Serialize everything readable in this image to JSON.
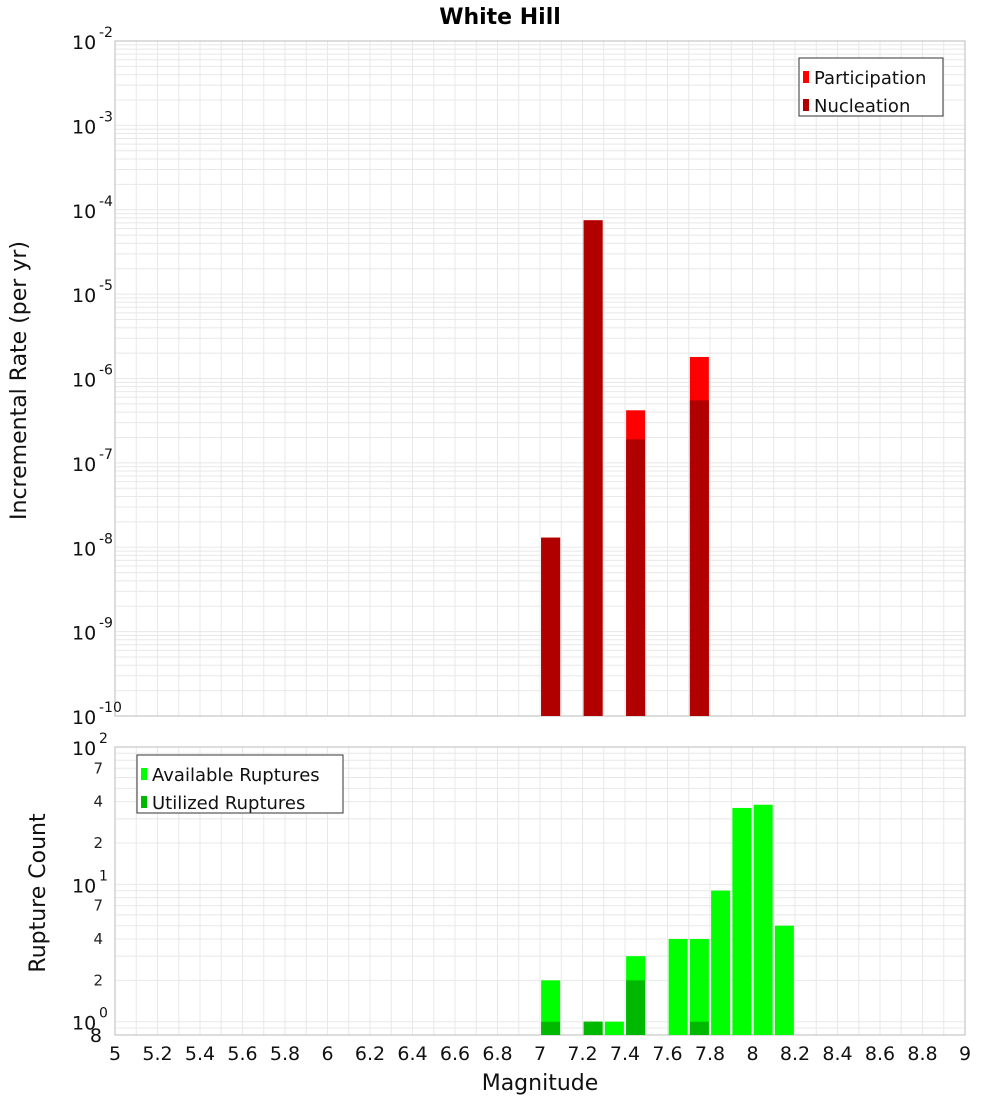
{
  "title": "White Hill",
  "xlabel": "Magnitude",
  "x_ticks": [
    "5",
    "5.2",
    "5.4",
    "5.6",
    "5.8",
    "6",
    "6.2",
    "6.4",
    "6.6",
    "6.8",
    "7",
    "7.2",
    "7.4",
    "7.6",
    "7.8",
    "8",
    "8.2",
    "8.4",
    "8.6",
    "8.8",
    "9"
  ],
  "colors": {
    "participation": "#ff0000",
    "nucleation": "#b00000",
    "available": "#00ff00",
    "utilized": "#00b800",
    "grid": "#e8e8e8",
    "frame": "#bbbbbb"
  },
  "chart_data": [
    {
      "type": "bar",
      "title": "White Hill",
      "ylabel": "Incremental Rate (per yr)",
      "yscale": "log",
      "xlim": [
        5,
        9
      ],
      "ylim": [
        1e-10,
        0.01
      ],
      "y_ticks": [
        {
          "base": "10",
          "exp": "-2"
        },
        {
          "base": "10",
          "exp": "-3"
        },
        {
          "base": "10",
          "exp": "-4"
        },
        {
          "base": "10",
          "exp": "-5"
        },
        {
          "base": "10",
          "exp": "-6"
        },
        {
          "base": "10",
          "exp": "-7"
        },
        {
          "base": "10",
          "exp": "-8"
        },
        {
          "base": "10",
          "exp": "-9"
        },
        {
          "base": "10",
          "exp": "-10"
        }
      ],
      "legend": {
        "position": "top-right",
        "entries": [
          "Participation",
          "Nucleation"
        ]
      },
      "grid": true,
      "series": [
        {
          "name": "Participation",
          "x": [
            7.05,
            7.25,
            7.45,
            7.75
          ],
          "values": [
            1.3e-08,
            7.5e-05,
            4.2e-07,
            1.8e-06
          ]
        },
        {
          "name": "Nucleation",
          "x": [
            7.05,
            7.25,
            7.45,
            7.75
          ],
          "values": [
            1.3e-08,
            7.5e-05,
            1.9e-07,
            5.5e-07
          ]
        }
      ]
    },
    {
      "type": "bar",
      "ylabel": "Rupture Count",
      "yscale": "log",
      "xlim": [
        5,
        9
      ],
      "ylim": [
        0.8,
        100
      ],
      "y_ticks": [
        {
          "base": "10",
          "exp": "2"
        },
        {
          "base": "10",
          "exp": "1"
        },
        {
          "base": "10",
          "exp": "0"
        }
      ],
      "y_minor_ticks": [
        {
          "label": "7",
          "value": 70
        },
        {
          "label": "4",
          "value": 40
        },
        {
          "label": "2",
          "value": 20
        },
        {
          "label": "7",
          "value": 7
        },
        {
          "label": "4",
          "value": 4
        },
        {
          "label": "2",
          "value": 2
        },
        {
          "label": "8",
          "value": 0.8
        }
      ],
      "legend": {
        "position": "top-left",
        "entries": [
          "Available Ruptures",
          "Utilized Ruptures"
        ]
      },
      "grid": true,
      "series": [
        {
          "name": "Available Ruptures",
          "x": [
            7.05,
            7.25,
            7.35,
            7.45,
            7.65,
            7.75,
            7.85,
            7.95,
            8.05,
            8.15
          ],
          "values": [
            2,
            1,
            1,
            3,
            4,
            4,
            9,
            36,
            38,
            5
          ]
        },
        {
          "name": "Utilized Ruptures",
          "x": [
            7.05,
            7.25,
            7.45,
            7.75
          ],
          "values": [
            1,
            1,
            2,
            1
          ]
        }
      ]
    }
  ]
}
